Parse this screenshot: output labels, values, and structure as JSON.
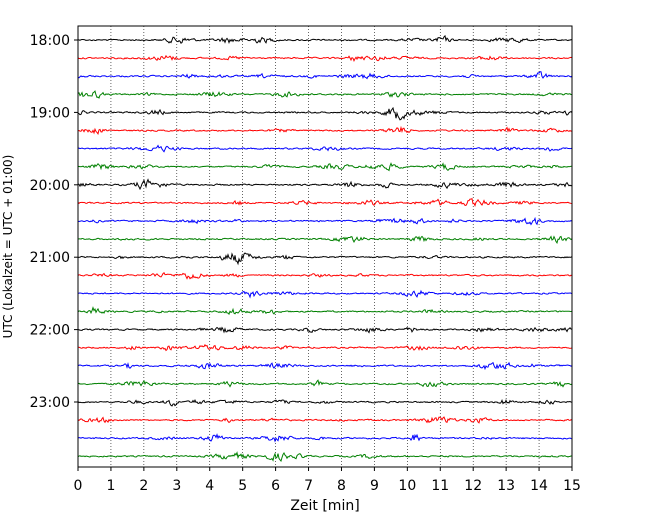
{
  "chart_data": {
    "type": "line",
    "xlabel": "Zeit  [min]",
    "ylabel": "UTC (Lokalzeit = UTC + 01:00)",
    "xlim": [
      0,
      15
    ],
    "x_ticks": [
      "0",
      "1",
      "2",
      "3",
      "4",
      "5",
      "6",
      "7",
      "8",
      "9",
      "10",
      "11",
      "12",
      "13",
      "14",
      "15"
    ],
    "y_ticks": [
      "18:00",
      "19:00",
      "20:00",
      "21:00",
      "22:00",
      "23:00"
    ],
    "grid": "vertical-dotted",
    "trace_interval_minutes": 15,
    "trace_start": "18:00",
    "trace_count": 24,
    "trace_colors": [
      "#000000",
      "#ff0000",
      "#0000ff",
      "#008000"
    ]
  }
}
